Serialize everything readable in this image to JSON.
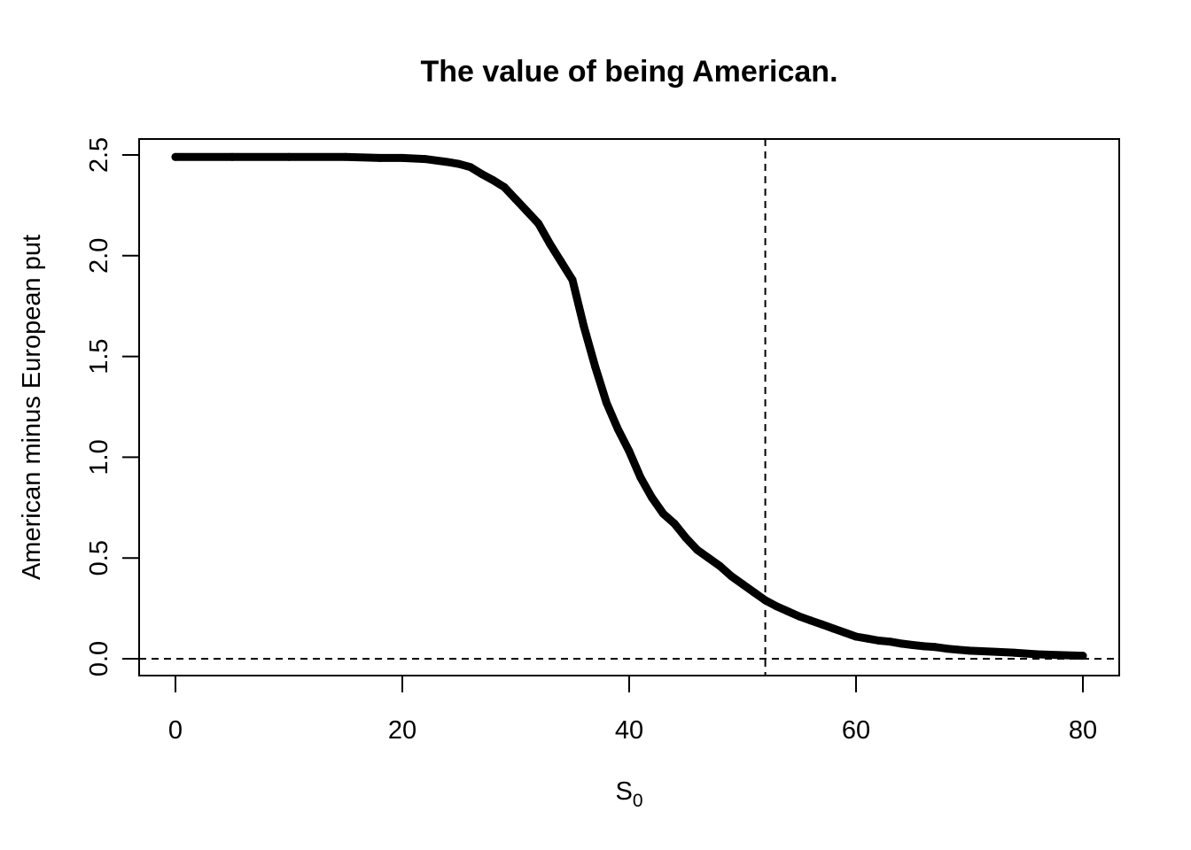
{
  "chart_data": {
    "type": "line",
    "title": "The value of being American.",
    "xlabel_main": "S",
    "xlabel_sub": "0",
    "ylabel": "American minus European put",
    "xlim": [
      0,
      80
    ],
    "ylim": [
      0,
      2.5
    ],
    "x_ticks": [
      0,
      20,
      40,
      60,
      80
    ],
    "y_ticks": [
      0.0,
      0.5,
      1.0,
      1.5,
      2.0,
      2.5
    ],
    "x_tick_labels": [
      "0",
      "20",
      "40",
      "60",
      "80"
    ],
    "y_tick_labels": [
      "0.0",
      "0.5",
      "1.0",
      "1.5",
      "2.0",
      "2.5"
    ],
    "grid": false,
    "reference_lines": [
      {
        "orientation": "vertical",
        "value": 52,
        "style": "dashed"
      },
      {
        "orientation": "horizontal",
        "value": 0,
        "style": "dashed"
      }
    ],
    "series": [
      {
        "line_color": "#000000",
        "x": [
          0,
          5,
          10,
          15,
          18,
          20,
          22,
          24,
          25,
          26,
          27,
          28,
          29,
          30,
          31,
          32,
          33,
          34,
          35,
          36,
          37,
          38,
          39,
          40,
          41,
          42,
          43,
          44,
          45,
          46,
          47,
          48,
          49,
          50,
          51,
          52,
          53,
          54,
          55,
          56,
          57,
          58,
          59,
          60,
          61,
          62,
          63,
          64,
          65,
          66,
          67,
          68,
          69,
          70,
          72,
          74,
          76,
          78,
          80
        ],
        "y": [
          2.49,
          2.49,
          2.49,
          2.49,
          2.485,
          2.485,
          2.48,
          2.465,
          2.455,
          2.44,
          2.405,
          2.375,
          2.34,
          2.28,
          2.22,
          2.16,
          2.06,
          1.97,
          1.88,
          1.65,
          1.45,
          1.27,
          1.14,
          1.03,
          0.9,
          0.8,
          0.72,
          0.67,
          0.6,
          0.54,
          0.5,
          0.46,
          0.41,
          0.37,
          0.33,
          0.29,
          0.26,
          0.235,
          0.21,
          0.19,
          0.17,
          0.15,
          0.13,
          0.11,
          0.1,
          0.09,
          0.085,
          0.075,
          0.068,
          0.062,
          0.058,
          0.05,
          0.045,
          0.04,
          0.035,
          0.03,
          0.022,
          0.018,
          0.015
        ]
      }
    ]
  }
}
